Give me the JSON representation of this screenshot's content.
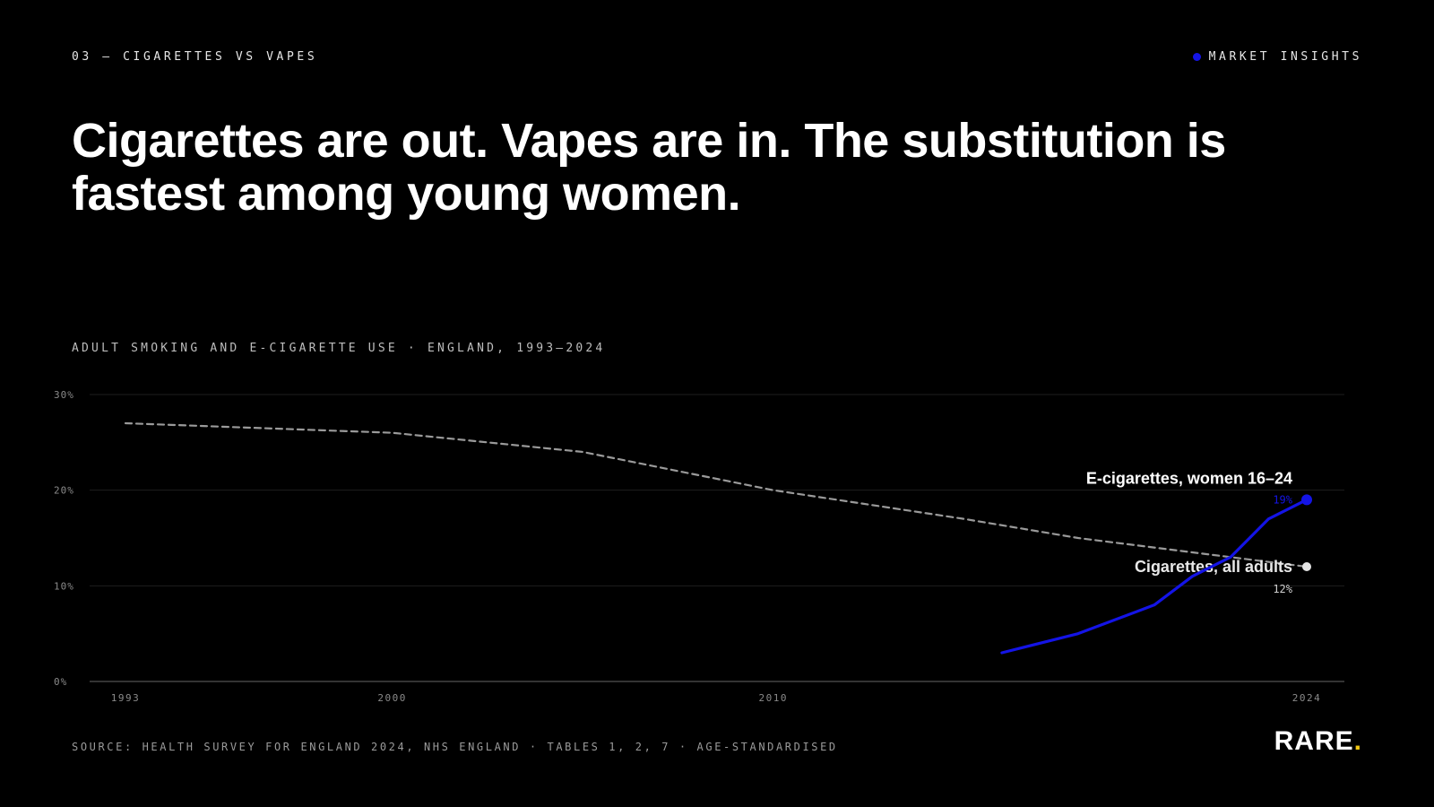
{
  "header": {
    "eyebrow": "03 — CIGARETTES VS VAPES",
    "tag": "MARKET INSIGHTS"
  },
  "headline": "Cigarettes are out. Vapes are in. The substitution is fastest among young women.",
  "chart_label": "ADULT SMOKING AND E-CIGARETTE USE · ENGLAND, 1993–2024",
  "colors": {
    "accent": "#1414e6",
    "cigarettes": "#9a9a9a",
    "background": "#000000",
    "logo_dot": "#f2c814"
  },
  "chart_data": {
    "type": "line",
    "xlim": [
      1993,
      2024
    ],
    "ylim": [
      0,
      30
    ],
    "x_ticks": [
      {
        "value": 1993,
        "label": "1993"
      },
      {
        "value": 2000,
        "label": "2000"
      },
      {
        "value": 2010,
        "label": "2010"
      },
      {
        "value": 2024,
        "label": "2024"
      }
    ],
    "y_ticks": [
      {
        "value": 0,
        "label": "0%"
      },
      {
        "value": 10,
        "label": "10%"
      },
      {
        "value": 20,
        "label": "20%"
      },
      {
        "value": 30,
        "label": "30%"
      }
    ],
    "grid": true,
    "series": [
      {
        "name": "Cigarettes, all adults",
        "style": "dashed",
        "color": "#9a9a9a",
        "end_label": "12%",
        "points": [
          [
            1993,
            27
          ],
          [
            2000,
            26
          ],
          [
            2005,
            24
          ],
          [
            2010,
            20
          ],
          [
            2015,
            17
          ],
          [
            2018,
            15
          ],
          [
            2022,
            13
          ],
          [
            2024,
            12
          ]
        ]
      },
      {
        "name": "E-cigarettes, women 16–24",
        "style": "solid",
        "color": "#1414e6",
        "end_label": "19%",
        "points": [
          [
            2016,
            3
          ],
          [
            2018,
            5
          ],
          [
            2020,
            8
          ],
          [
            2021,
            11
          ],
          [
            2022,
            13
          ],
          [
            2023,
            17
          ],
          [
            2024,
            19
          ]
        ]
      }
    ]
  },
  "footer": {
    "source": "SOURCE: HEALTH SURVEY FOR ENGLAND 2024, NHS ENGLAND · TABLES 1, 2, 7 · AGE-STANDARDISED",
    "logo": "RARE",
    "logo_dot": "."
  }
}
